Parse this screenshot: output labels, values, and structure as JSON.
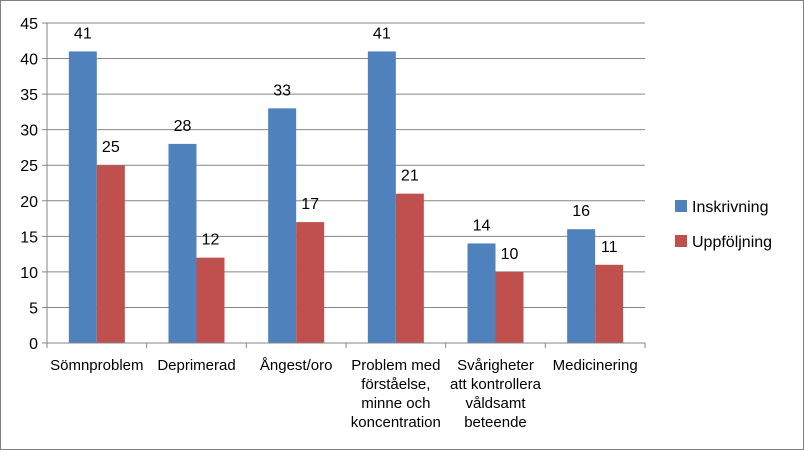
{
  "chart_data": {
    "type": "bar",
    "categories": [
      [
        "Sömnproblem"
      ],
      [
        "Deprimerad"
      ],
      [
        "Ångest/oro"
      ],
      [
        "Problem med",
        "förståelse,",
        "minne och",
        "koncentration"
      ],
      [
        "Svårigheter",
        "att kontrollera",
        "våldsamt",
        "beteende"
      ],
      [
        "Medicinering"
      ]
    ],
    "series": [
      {
        "name": "Inskrivning",
        "values": [
          41,
          28,
          33,
          41,
          14,
          16
        ],
        "color": "#4f81bd"
      },
      {
        "name": "Uppföljning",
        "values": [
          25,
          12,
          17,
          21,
          10,
          11
        ],
        "color": "#c0504d"
      }
    ],
    "ylim": [
      0,
      45
    ],
    "yticks": [
      0,
      5,
      10,
      15,
      20,
      25,
      30,
      35,
      40,
      45
    ],
    "grid": true,
    "legend_position": "right",
    "data_labels": true
  }
}
